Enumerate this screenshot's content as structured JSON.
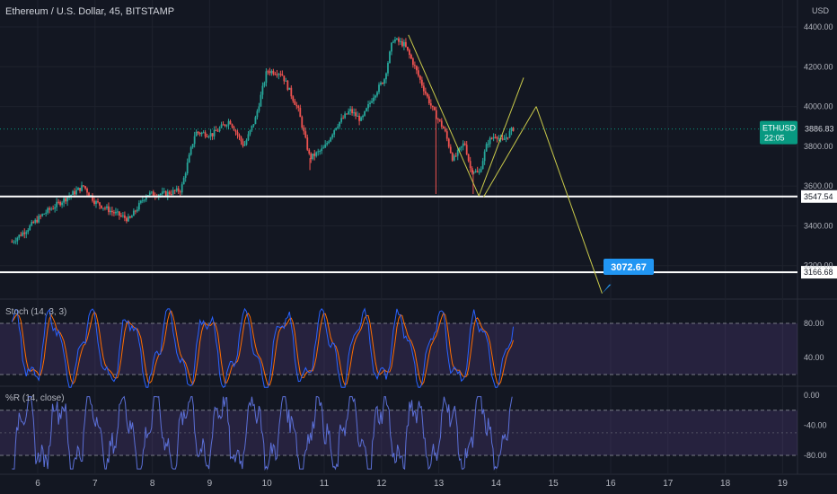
{
  "chart_title": "Ethereum / U.S. Dollar, 45, BITSTAMP",
  "currency": "USD",
  "colors": {
    "up": "#26a69a",
    "down": "#ef5350",
    "grid": "#1e222d",
    "bg": "#131722",
    "accent": "#2962ff",
    "stoch_k": "#2962ff",
    "stoch_d": "#ff6d00",
    "wr": "#7e57c2",
    "drawing": "#c9c94a",
    "teal": "#089981"
  },
  "symbol_tag": {
    "label": "ETHUSD",
    "price": "3886.83",
    "countdown": "22:05"
  },
  "stoch_title": "Stoch (14, 3, 3)",
  "wr_title": "%R (14, close)",
  "chart_data": [
    {
      "type": "candlestick",
      "title": "Ethereum / U.S. Dollar, 45, BITSTAMP",
      "ylim": [
        3000,
        4450
      ],
      "yticks": [
        "4400.00",
        "4200.00",
        "4000.00",
        "3800.00",
        "3600.00",
        "3400.00",
        "3200.00"
      ],
      "xticks": [
        "6",
        "7",
        "8",
        "9",
        "10",
        "11",
        "12",
        "13",
        "14",
        "15",
        "16",
        "17",
        "18",
        "19"
      ],
      "x_day_range": [
        5.5,
        19.35
      ],
      "anchors": [
        [
          5.55,
          3320
        ],
        [
          5.8,
          3380
        ],
        [
          6.1,
          3460
        ],
        [
          6.4,
          3520
        ],
        [
          6.8,
          3600
        ],
        [
          7.0,
          3520
        ],
        [
          7.3,
          3470
        ],
        [
          7.6,
          3430
        ],
        [
          7.9,
          3560
        ],
        [
          8.2,
          3560
        ],
        [
          8.5,
          3580
        ],
        [
          8.75,
          3870
        ],
        [
          9.05,
          3860
        ],
        [
          9.35,
          3930
        ],
        [
          9.6,
          3800
        ],
        [
          9.8,
          3940
        ],
        [
          10.0,
          4180
        ],
        [
          10.25,
          4170
        ],
        [
          10.55,
          3980
        ],
        [
          10.75,
          3740
        ],
        [
          11.0,
          3790
        ],
        [
          11.2,
          3900
        ],
        [
          11.45,
          3980
        ],
        [
          11.65,
          3930
        ],
        [
          11.85,
          4050
        ],
        [
          12.05,
          4140
        ],
        [
          12.2,
          4340
        ],
        [
          12.4,
          4310
        ],
        [
          12.55,
          4220
        ],
        [
          12.75,
          4080
        ],
        [
          12.9,
          3980
        ],
        [
          13.1,
          3880
        ],
        [
          13.25,
          3730
        ],
        [
          13.45,
          3820
        ],
        [
          13.55,
          3690
        ],
        [
          13.7,
          3660
        ],
        [
          13.85,
          3820
        ],
        [
          14.0,
          3860
        ],
        [
          14.1,
          3820
        ],
        [
          14.3,
          3890
        ]
      ],
      "last_price": 3886.83,
      "levels": [
        {
          "label": "3547.54",
          "value": 3547.54
        },
        {
          "label": "3166.68",
          "value": 3166.68
        }
      ],
      "target_label": "3072.67",
      "drawings": [
        [
          [
            12.47,
            4360
          ],
          [
            13.7,
            3550
          ]
        ],
        [
          [
            13.7,
            3550
          ],
          [
            14.48,
            4145
          ]
        ],
        [
          [
            13.78,
            3545
          ],
          [
            14.7,
            4000
          ]
        ],
        [
          [
            14.7,
            4000
          ],
          [
            15.85,
            3060
          ]
        ]
      ]
    },
    {
      "type": "line",
      "title": "Stoch (14, 3, 3)",
      "ylim": [
        0,
        100
      ],
      "yticks": [
        "80.00",
        "40.00"
      ],
      "bands": [
        20,
        80
      ],
      "series": [
        {
          "key": "k"
        },
        {
          "key": "d"
        }
      ]
    },
    {
      "type": "line",
      "title": "%R (14, close)",
      "ylim": [
        -100,
        0
      ],
      "yticks": [
        "0.00",
        "-40.00",
        "-80.00"
      ],
      "bands": [
        -20,
        -80
      ],
      "series": [
        {
          "key": "r"
        }
      ]
    }
  ]
}
